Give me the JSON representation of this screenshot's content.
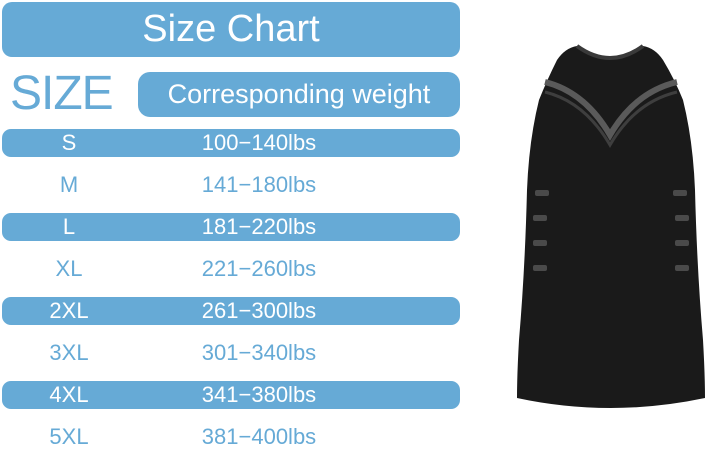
{
  "title": "Size Chart",
  "size_header": "SIZE",
  "weight_header": "Corresponding weight",
  "rows": [
    {
      "size": "S",
      "weight": "100−140lbs"
    },
    {
      "size": "M",
      "weight": "141−180lbs"
    },
    {
      "size": "L",
      "weight": "181−220lbs"
    },
    {
      "size": "XL",
      "weight": "221−260lbs"
    },
    {
      "size": "2XL",
      "weight": "261−300lbs"
    },
    {
      "size": "3XL",
      "weight": "301−340lbs"
    },
    {
      "size": "4XL",
      "weight": "341−380lbs"
    },
    {
      "size": "5XL",
      "weight": "381−400lbs"
    }
  ],
  "colors": {
    "accent": "#66aad6",
    "shirt": "#1a1a1a"
  }
}
